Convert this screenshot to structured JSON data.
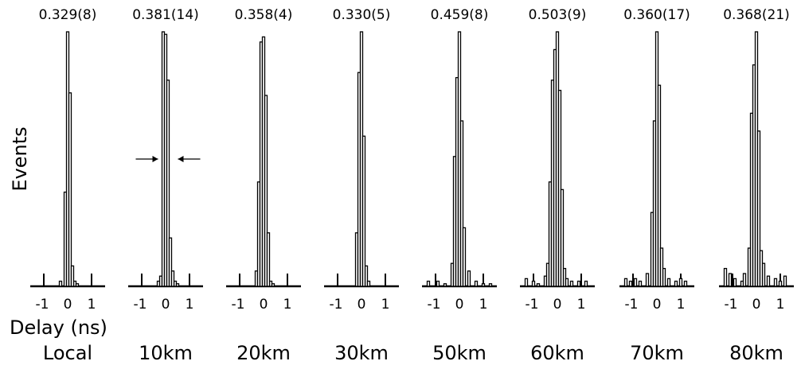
{
  "chart_data": {
    "type": "bar",
    "ylabel": "Events",
    "xlabel": "Delay (ns)",
    "x_ticks": [
      "-1",
      "0",
      "1"
    ],
    "xlim": [
      -1.5,
      1.5
    ],
    "bin_width_ns": 0.1,
    "panels": [
      {
        "label": "Local",
        "fwhm_label": "0.329(8)",
        "bins": [
          -0.1,
          0.0,
          0.1,
          0.2
        ],
        "values": [
          0.37,
          1.0,
          0.76,
          0.08
        ],
        "extra_bins": [
          -0.3,
          0.3,
          0.4
        ],
        "extra_values": [
          0.02,
          0.02,
          0.01
        ]
      },
      {
        "label": "10km",
        "fwhm_label": "0.381(14)",
        "bins": [
          -0.2,
          -0.1,
          0.0,
          0.1,
          0.2,
          0.3
        ],
        "values": [
          0.04,
          1.0,
          0.99,
          0.81,
          0.19,
          0.06
        ],
        "extra_bins": [
          -0.3,
          0.4,
          0.5
        ],
        "extra_values": [
          0.02,
          0.02,
          0.01
        ],
        "arrows": true
      },
      {
        "label": "20km",
        "fwhm_label": "0.358(4)",
        "bins": [
          -0.2,
          -0.1,
          0.0,
          0.1,
          0.2
        ],
        "values": [
          0.41,
          0.96,
          0.98,
          0.75,
          0.21
        ],
        "extra_bins": [
          -0.3,
          0.3,
          0.4
        ],
        "extra_values": [
          0.06,
          0.02,
          0.01
        ]
      },
      {
        "label": "30km",
        "fwhm_label": "0.330(5)",
        "bins": [
          -0.1,
          0.0,
          0.1
        ],
        "values": [
          0.84,
          1.0,
          0.59
        ],
        "extra_bins": [
          -0.2,
          0.2,
          0.3
        ],
        "extra_values": [
          0.21,
          0.08,
          0.02
        ]
      },
      {
        "label": "50km",
        "fwhm_label": "0.459(8)",
        "bins": [
          -0.2,
          -0.1,
          0.0,
          0.1,
          0.2
        ],
        "values": [
          0.51,
          0.82,
          1.0,
          0.65,
          0.23
        ],
        "extra_bins": [
          -1.3,
          -0.9,
          -0.6,
          -0.3,
          0.4,
          0.7,
          1.0,
          1.3
        ],
        "extra_values": [
          0.02,
          0.02,
          0.01,
          0.09,
          0.06,
          0.02,
          0.01,
          0.01
        ]
      },
      {
        "label": "60km",
        "fwhm_label": "0.503(9)",
        "bins": [
          -0.3,
          -0.2,
          -0.1,
          0.0,
          0.1,
          0.2
        ],
        "values": [
          0.41,
          0.81,
          0.93,
          1.0,
          0.77,
          0.38
        ],
        "extra_bins": [
          -1.3,
          -1.0,
          -0.8,
          -0.5,
          -0.4,
          0.3,
          0.4,
          0.6,
          0.9,
          1.2
        ],
        "extra_values": [
          0.03,
          0.02,
          0.01,
          0.04,
          0.09,
          0.07,
          0.03,
          0.02,
          0.02,
          0.02
        ]
      },
      {
        "label": "70km",
        "fwhm_label": "0.360(17)",
        "bins": [
          -0.2,
          -0.1,
          0.0,
          0.1,
          0.2
        ],
        "values": [
          0.29,
          0.65,
          1.0,
          0.79,
          0.15
        ],
        "extra_bins": [
          -1.3,
          -1.1,
          -0.9,
          -0.7,
          -0.4,
          0.3,
          0.5,
          0.8,
          1.0,
          1.2
        ],
        "extra_values": [
          0.03,
          0.02,
          0.03,
          0.02,
          0.05,
          0.07,
          0.03,
          0.02,
          0.03,
          0.02
        ]
      },
      {
        "label": "80km",
        "fwhm_label": "0.368(21)",
        "bins": [
          -0.3,
          -0.2,
          -0.1,
          0.0,
          0.1,
          0.2
        ],
        "values": [
          0.15,
          0.68,
          0.87,
          1.0,
          0.61,
          0.14
        ],
        "extra_bins": [
          -1.3,
          -1.1,
          -0.9,
          -0.6,
          -0.5,
          0.3,
          0.5,
          0.8,
          1.0,
          1.2
        ],
        "extra_values": [
          0.07,
          0.05,
          0.03,
          0.02,
          0.05,
          0.09,
          0.04,
          0.03,
          0.02,
          0.04
        ]
      }
    ]
  }
}
